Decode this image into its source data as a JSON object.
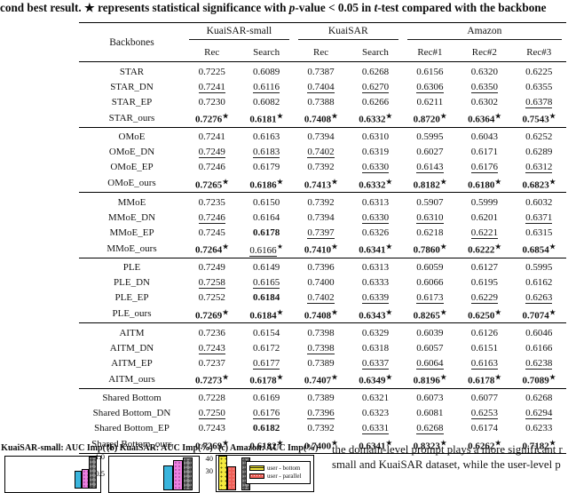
{
  "caption": {
    "segments": [
      {
        "t": "cond best result. ",
        "i": false
      },
      {
        "t": "★",
        "i": false
      },
      {
        "t": " represents statistical significance with ",
        "i": false
      },
      {
        "t": "p",
        "i": true
      },
      {
        "t": "-value < 0.05 in ",
        "i": false
      },
      {
        "t": "t",
        "i": true
      },
      {
        "t": "-test compared with the backbone",
        "i": false
      }
    ]
  },
  "table": {
    "backbone_header": "Backbones",
    "col_groups": [
      {
        "label": "KuaiSAR-small",
        "span": 2
      },
      {
        "label": "KuaiSAR",
        "span": 2
      },
      {
        "label": "Amazon",
        "span": 3
      }
    ],
    "sub_headers": [
      "Rec",
      "Search",
      "Rec",
      "Search",
      "Rec#1",
      "Rec#2",
      "Rec#3"
    ],
    "groups": [
      {
        "rows": [
          {
            "name": "STAR",
            "cells": [
              "0.7225",
              "0.6089",
              "0.7387",
              "0.6268",
              "0.6156",
              "0.6320",
              "0.6225"
            ]
          },
          {
            "name": "STAR_DN",
            "cells": [
              "0.7241|u",
              "0.6116|u",
              "0.7404|u",
              "0.6270|u",
              "0.6306|u",
              "0.6350|u",
              "0.6355"
            ]
          },
          {
            "name": "STAR_EP",
            "cells": [
              "0.7230",
              "0.6082",
              "0.7388",
              "0.6266",
              "0.6211",
              "0.6302",
              "0.6378|u"
            ]
          },
          {
            "name": "STAR_ours",
            "cells": [
              "0.7276|b*",
              "0.6181|b*",
              "0.7408|b*",
              "0.6332|b*",
              "0.8720|b*",
              "0.6364|b*",
              "0.7543|b*"
            ]
          }
        ]
      },
      {
        "rows": [
          {
            "name": "OMoE",
            "cells": [
              "0.7241",
              "0.6163",
              "0.7394",
              "0.6310",
              "0.5995",
              "0.6043",
              "0.6252"
            ]
          },
          {
            "name": "OMoE_DN",
            "cells": [
              "0.7249|u",
              "0.6183|u",
              "0.7402|u",
              "0.6319",
              "0.6027",
              "0.6171",
              "0.6289"
            ]
          },
          {
            "name": "OMoE_EP",
            "cells": [
              "0.7246",
              "0.6179",
              "0.7392",
              "0.6330|u",
              "0.6143|u",
              "0.6176|u",
              "0.6312|u"
            ]
          },
          {
            "name": "OMoE_ours",
            "cells": [
              "0.7265|b*",
              "0.6186|b*",
              "0.7413|b*",
              "0.6332|b*",
              "0.8182|b*",
              "0.6180|b*",
              "0.6823|b*"
            ]
          }
        ]
      },
      {
        "rows": [
          {
            "name": "MMoE",
            "cells": [
              "0.7235",
              "0.6150",
              "0.7392",
              "0.6313",
              "0.5907",
              "0.5999",
              "0.6032"
            ]
          },
          {
            "name": "MMoE_DN",
            "cells": [
              "0.7246|u",
              "0.6164",
              "0.7394",
              "0.6330|u",
              "0.6310|u",
              "0.6201",
              "0.6371|u"
            ]
          },
          {
            "name": "MMoE_EP",
            "cells": [
              "0.7245",
              "0.6178|b",
              "0.7397|u",
              "0.6326",
              "0.6218",
              "0.6221|u",
              "0.6315"
            ]
          },
          {
            "name": "MMoE_ours",
            "cells": [
              "0.7264|b*",
              "0.6166|u*",
              "0.7410|b*",
              "0.6341|b*",
              "0.7860|b*",
              "0.6222|b*",
              "0.6854|b*"
            ]
          }
        ]
      },
      {
        "rows": [
          {
            "name": "PLE",
            "cells": [
              "0.7249",
              "0.6149",
              "0.7396",
              "0.6313",
              "0.6059",
              "0.6127",
              "0.5995"
            ]
          },
          {
            "name": "PLE_DN",
            "cells": [
              "0.7258|u",
              "0.6165|u",
              "0.7400",
              "0.6333",
              "0.6066",
              "0.6195",
              "0.6162"
            ]
          },
          {
            "name": "PLE_EP",
            "cells": [
              "0.7252",
              "0.6184|b",
              "0.7402|u",
              "0.6339|u",
              "0.6173|u",
              "0.6229|u",
              "0.6263|u"
            ]
          },
          {
            "name": "PLE_ours",
            "cells": [
              "0.7269|b*",
              "0.6184|b*",
              "0.7408|b*",
              "0.6343|b*",
              "0.8265|b*",
              "0.6250|b*",
              "0.7074|b*"
            ]
          }
        ]
      },
      {
        "rows": [
          {
            "name": "AITM",
            "cells": [
              "0.7236",
              "0.6154",
              "0.7398",
              "0.6329",
              "0.6039",
              "0.6126",
              "0.6046"
            ]
          },
          {
            "name": "AITM_DN",
            "cells": [
              "0.7243|u",
              "0.6172",
              "0.7398|u",
              "0.6318",
              "0.6057",
              "0.6151",
              "0.6166"
            ]
          },
          {
            "name": "AITM_EP",
            "cells": [
              "0.7237",
              "0.6177|u",
              "0.7389",
              "0.6337|u",
              "0.6064|u",
              "0.6163|u",
              "0.6238|u"
            ]
          },
          {
            "name": "AITM_ours",
            "cells": [
              "0.7273|b*",
              "0.6178|b*",
              "0.7407|b*",
              "0.6349|b*",
              "0.8196|b*",
              "0.6178|b*",
              "0.7089|b*"
            ]
          }
        ]
      },
      {
        "rows": [
          {
            "name": "Shared Bottom",
            "cells": [
              "0.7228",
              "0.6169",
              "0.7389",
              "0.6321",
              "0.6073",
              "0.6077",
              "0.6268"
            ]
          },
          {
            "name": "Shared Bottom_DN",
            "cells": [
              "0.7250|u",
              "0.6176|u",
              "0.7396|u",
              "0.6323",
              "0.6081",
              "0.6253|u",
              "0.6294|u"
            ]
          },
          {
            "name": "Shared Bottom_EP",
            "cells": [
              "0.7243",
              "0.6182|b",
              "0.7392",
              "0.6331|u",
              "0.6268|u",
              "0.6174",
              "0.6233"
            ]
          },
          {
            "name": "Shared Bottom_ours",
            "cells": [
              "0.7269|b*",
              "0.6182|b*",
              "0.7400|b*",
              "0.6341|b*",
              "0.8323|b*",
              "0.6262|b*",
              "0.7182|b*"
            ]
          }
        ]
      }
    ]
  },
  "figures": [
    {
      "label": "(a) KuaiSAR-small: AUC Imp(%)",
      "bars_visible": [
        "cyan",
        "magenta-dotted",
        "dark-checkered"
      ]
    },
    {
      "label": "(b) KuaiSAR: AUC Imp(%)",
      "yticks": [
        "1.0",
        "0.5"
      ],
      "bars_visible": [
        "cyan",
        "magenta-dotted",
        "dark-checkered"
      ],
      "approx_values": [
        0.69,
        0.86,
        0.94
      ]
    },
    {
      "label": "(c) Amazon: AUC Imp(%)",
      "yticks": [
        "40",
        "30"
      ],
      "legend": [
        "user - bottom",
        "user - parallel"
      ],
      "bars_visible": [
        "yellow-dotted",
        "red-dotted",
        "dark-checkered"
      ],
      "approx_values": [
        40,
        31,
        38
      ]
    }
  ],
  "body_text": {
    "line1": "the domain-level prompt plays a more significant r",
    "line2": "small and KuaiSAR dataset, while the user-level p"
  }
}
